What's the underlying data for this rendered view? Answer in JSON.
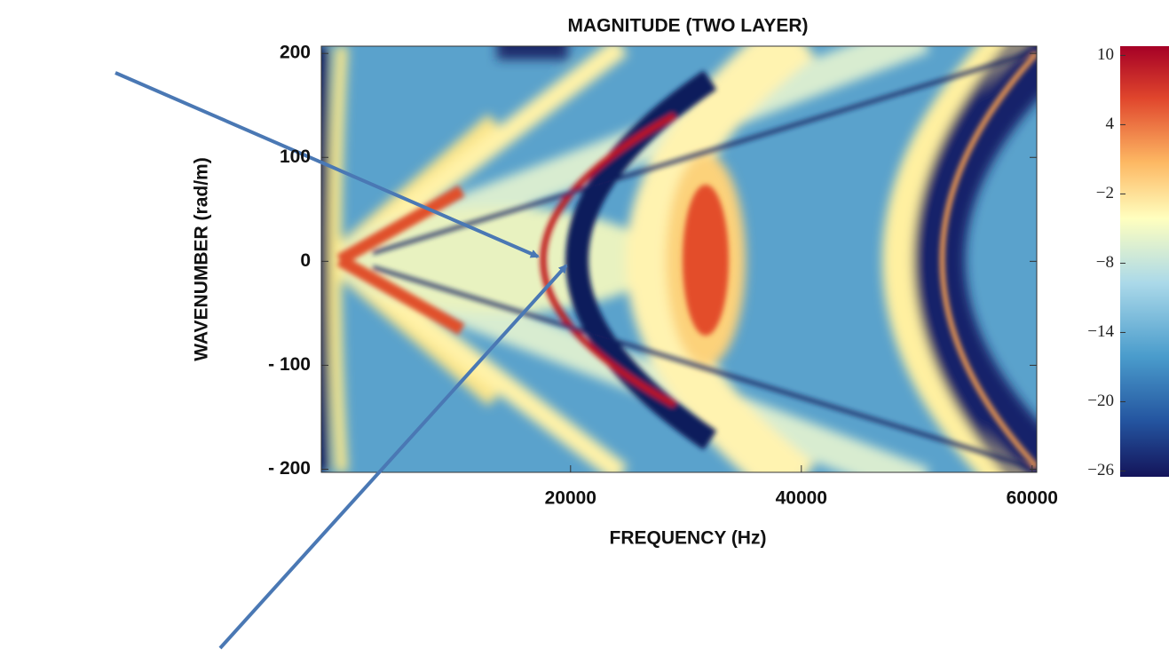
{
  "chart_data": {
    "type": "heatmap",
    "title": "MAGNITUDE (TWO LAYER)",
    "x_label": "FREQUENCY (Hz)",
    "y_label": "WAVENUMBER (rad/m)",
    "xlim": [
      -1600,
      60400
    ],
    "xticks": [
      20000,
      40000,
      60000
    ],
    "ylim": [
      -203,
      207
    ],
    "yticks": [
      200,
      100,
      0,
      {
        "value": -100,
        "label": "- 100"
      },
      {
        "value": -200,
        "label": "- 200"
      }
    ],
    "colorbar": {
      "lim": [
        -26.5,
        10.8
      ],
      "ticks": [
        10,
        4,
        {
          "value": -2,
          "label": "−2"
        },
        {
          "value": -8,
          "label": "−8"
        },
        {
          "value": -14,
          "label": "−14"
        },
        {
          "value": -20,
          "label": "−20"
        },
        {
          "value": -26,
          "label": "−26"
        }
      ]
    }
  }
}
